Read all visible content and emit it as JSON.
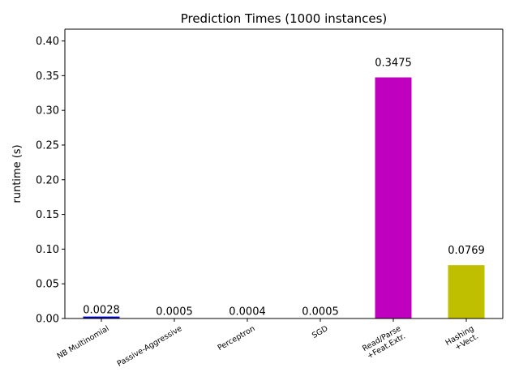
{
  "chart_data": {
    "type": "bar",
    "title": "Prediction Times (1000 instances)",
    "xlabel": "",
    "ylabel": "runtime (s)",
    "ylim": [
      0,
      0.417
    ],
    "yticks": [
      "0.00",
      "0.05",
      "0.10",
      "0.15",
      "0.20",
      "0.25",
      "0.30",
      "0.35",
      "0.40"
    ],
    "categories": [
      [
        "NB Multinomial"
      ],
      [
        "Passive-Aggressive"
      ],
      [
        "Perceptron"
      ],
      [
        "SGD"
      ],
      [
        "Read/Parse",
        "+Feat.Extr."
      ],
      [
        "Hashing",
        "+Vect."
      ]
    ],
    "values": [
      0.0028,
      0.0005,
      0.0004,
      0.0005,
      0.3475,
      0.0769
    ],
    "value_labels": [
      "0.0028",
      "0.0005",
      "0.0004",
      "0.0005",
      "0.3475",
      "0.0769"
    ],
    "colors": [
      "#0000bf",
      "#008000",
      "#ff0000",
      "#00bfbf",
      "#bf00bf",
      "#bfbf00"
    ],
    "grid": false,
    "x_tick_rotation_deg": 30
  }
}
